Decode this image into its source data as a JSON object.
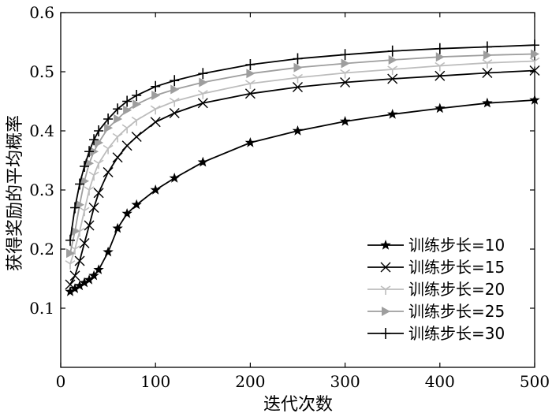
{
  "chart_data": {
    "type": "line",
    "xlabel": "迭代次数",
    "ylabel": "获得奖励的平均概率",
    "xlim": [
      0,
      500
    ],
    "ylim": [
      0,
      0.6
    ],
    "xticks": [
      "0",
      "100",
      "200",
      "300",
      "400",
      "500"
    ],
    "yticks": [
      "0.1",
      "0.2",
      "0.3",
      "0.4",
      "0.5",
      "0.6"
    ],
    "grid": false,
    "legend_position": "bottom-right",
    "series": [
      {
        "name": "训练步长=10",
        "marker": "star",
        "color": "#000000",
        "x": [
          10,
          15,
          20,
          25,
          30,
          35,
          40,
          50,
          60,
          70,
          80,
          100,
          120,
          150,
          200,
          250,
          300,
          350,
          400,
          450,
          500
        ],
        "y": [
          0.128,
          0.133,
          0.138,
          0.143,
          0.148,
          0.155,
          0.165,
          0.195,
          0.235,
          0.26,
          0.275,
          0.3,
          0.32,
          0.347,
          0.38,
          0.4,
          0.416,
          0.428,
          0.438,
          0.447,
          0.452
        ]
      },
      {
        "name": "训练步长=15",
        "marker": "x",
        "color": "#000000",
        "x": [
          10,
          15,
          20,
          25,
          30,
          35,
          40,
          50,
          60,
          70,
          80,
          100,
          120,
          150,
          200,
          250,
          300,
          350,
          400,
          450,
          500
        ],
        "y": [
          0.14,
          0.155,
          0.18,
          0.21,
          0.24,
          0.27,
          0.295,
          0.33,
          0.355,
          0.375,
          0.39,
          0.415,
          0.43,
          0.447,
          0.463,
          0.474,
          0.482,
          0.488,
          0.493,
          0.498,
          0.502
        ]
      },
      {
        "name": "训练步长=20",
        "marker": "tri-down",
        "color": "#bdbdbd",
        "x": [
          10,
          15,
          20,
          25,
          30,
          35,
          40,
          50,
          60,
          70,
          80,
          100,
          120,
          150,
          200,
          250,
          300,
          350,
          400,
          450,
          500
        ],
        "y": [
          0.175,
          0.2,
          0.23,
          0.265,
          0.3,
          0.325,
          0.345,
          0.37,
          0.39,
          0.405,
          0.418,
          0.437,
          0.45,
          0.463,
          0.48,
          0.49,
          0.498,
          0.504,
          0.51,
          0.515,
          0.518
        ]
      },
      {
        "name": "训练步长=25",
        "marker": "triangle-right",
        "color": "#9e9e9e",
        "x": [
          10,
          15,
          20,
          25,
          30,
          35,
          40,
          50,
          60,
          70,
          80,
          100,
          120,
          150,
          200,
          250,
          300,
          350,
          400,
          450,
          500
        ],
        "y": [
          0.193,
          0.23,
          0.275,
          0.315,
          0.345,
          0.365,
          0.38,
          0.405,
          0.42,
          0.435,
          0.445,
          0.46,
          0.47,
          0.482,
          0.497,
          0.507,
          0.514,
          0.52,
          0.525,
          0.528,
          0.53
        ]
      },
      {
        "name": "训练步长=30",
        "marker": "plus",
        "color": "#000000",
        "x": [
          10,
          15,
          20,
          25,
          30,
          35,
          40,
          50,
          60,
          70,
          80,
          100,
          120,
          150,
          200,
          250,
          300,
          350,
          400,
          450,
          500
        ],
        "y": [
          0.215,
          0.27,
          0.31,
          0.34,
          0.365,
          0.385,
          0.4,
          0.42,
          0.437,
          0.45,
          0.46,
          0.475,
          0.485,
          0.497,
          0.512,
          0.522,
          0.529,
          0.535,
          0.539,
          0.542,
          0.545
        ]
      }
    ]
  }
}
